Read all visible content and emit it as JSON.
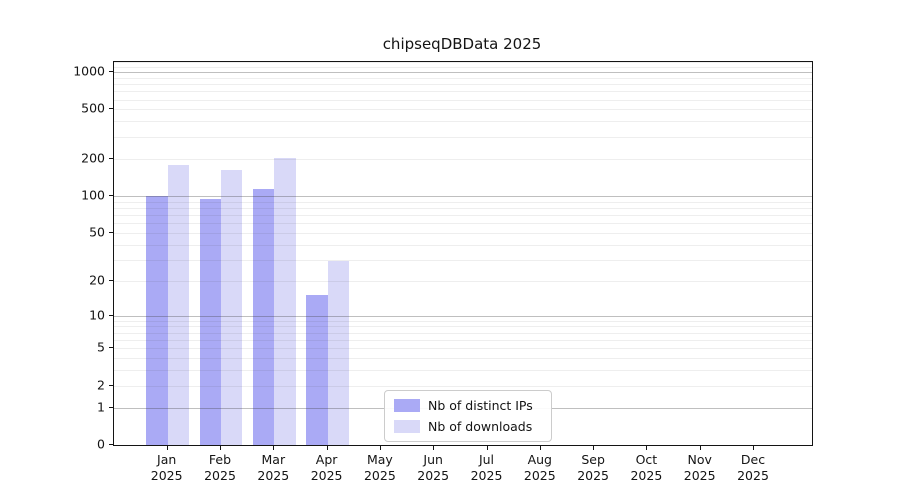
{
  "title": "chipseqDBData 2025",
  "chart_data": {
    "type": "bar",
    "title": "chipseqDBData 2025",
    "categories": [
      "Jan 2025",
      "Feb 2025",
      "Mar 2025",
      "Apr 2025",
      "May 2025",
      "Jun 2025",
      "Jul 2025",
      "Aug 2025",
      "Sep 2025",
      "Oct 2025",
      "Nov 2025",
      "Dec 2025"
    ],
    "series": [
      {
        "name": "Nb of distinct IPs",
        "color": "#aaaaf5",
        "values": [
          100,
          94,
          114,
          15,
          0,
          0,
          0,
          0,
          0,
          0,
          0,
          0
        ]
      },
      {
        "name": "Nb of downloads",
        "color": "#d9d9f8",
        "values": [
          178,
          161,
          203,
          29,
          0,
          0,
          0,
          0,
          0,
          0,
          0,
          0
        ]
      }
    ],
    "xlabel": "",
    "ylabel": "",
    "y_scale": "log1p",
    "y_ticks": [
      0,
      1,
      2,
      5,
      10,
      20,
      50,
      100,
      200,
      500,
      1000
    ],
    "y_major_gridlines": [
      1,
      10,
      100,
      1000
    ],
    "ylim": [
      0,
      1205
    ],
    "grid": true,
    "legend_position": "lower center"
  },
  "legend": {
    "items": [
      {
        "label": "Nb of distinct IPs",
        "color": "#aaaaf5"
      },
      {
        "label": "Nb of downloads",
        "color": "#d9d9f8"
      }
    ]
  }
}
